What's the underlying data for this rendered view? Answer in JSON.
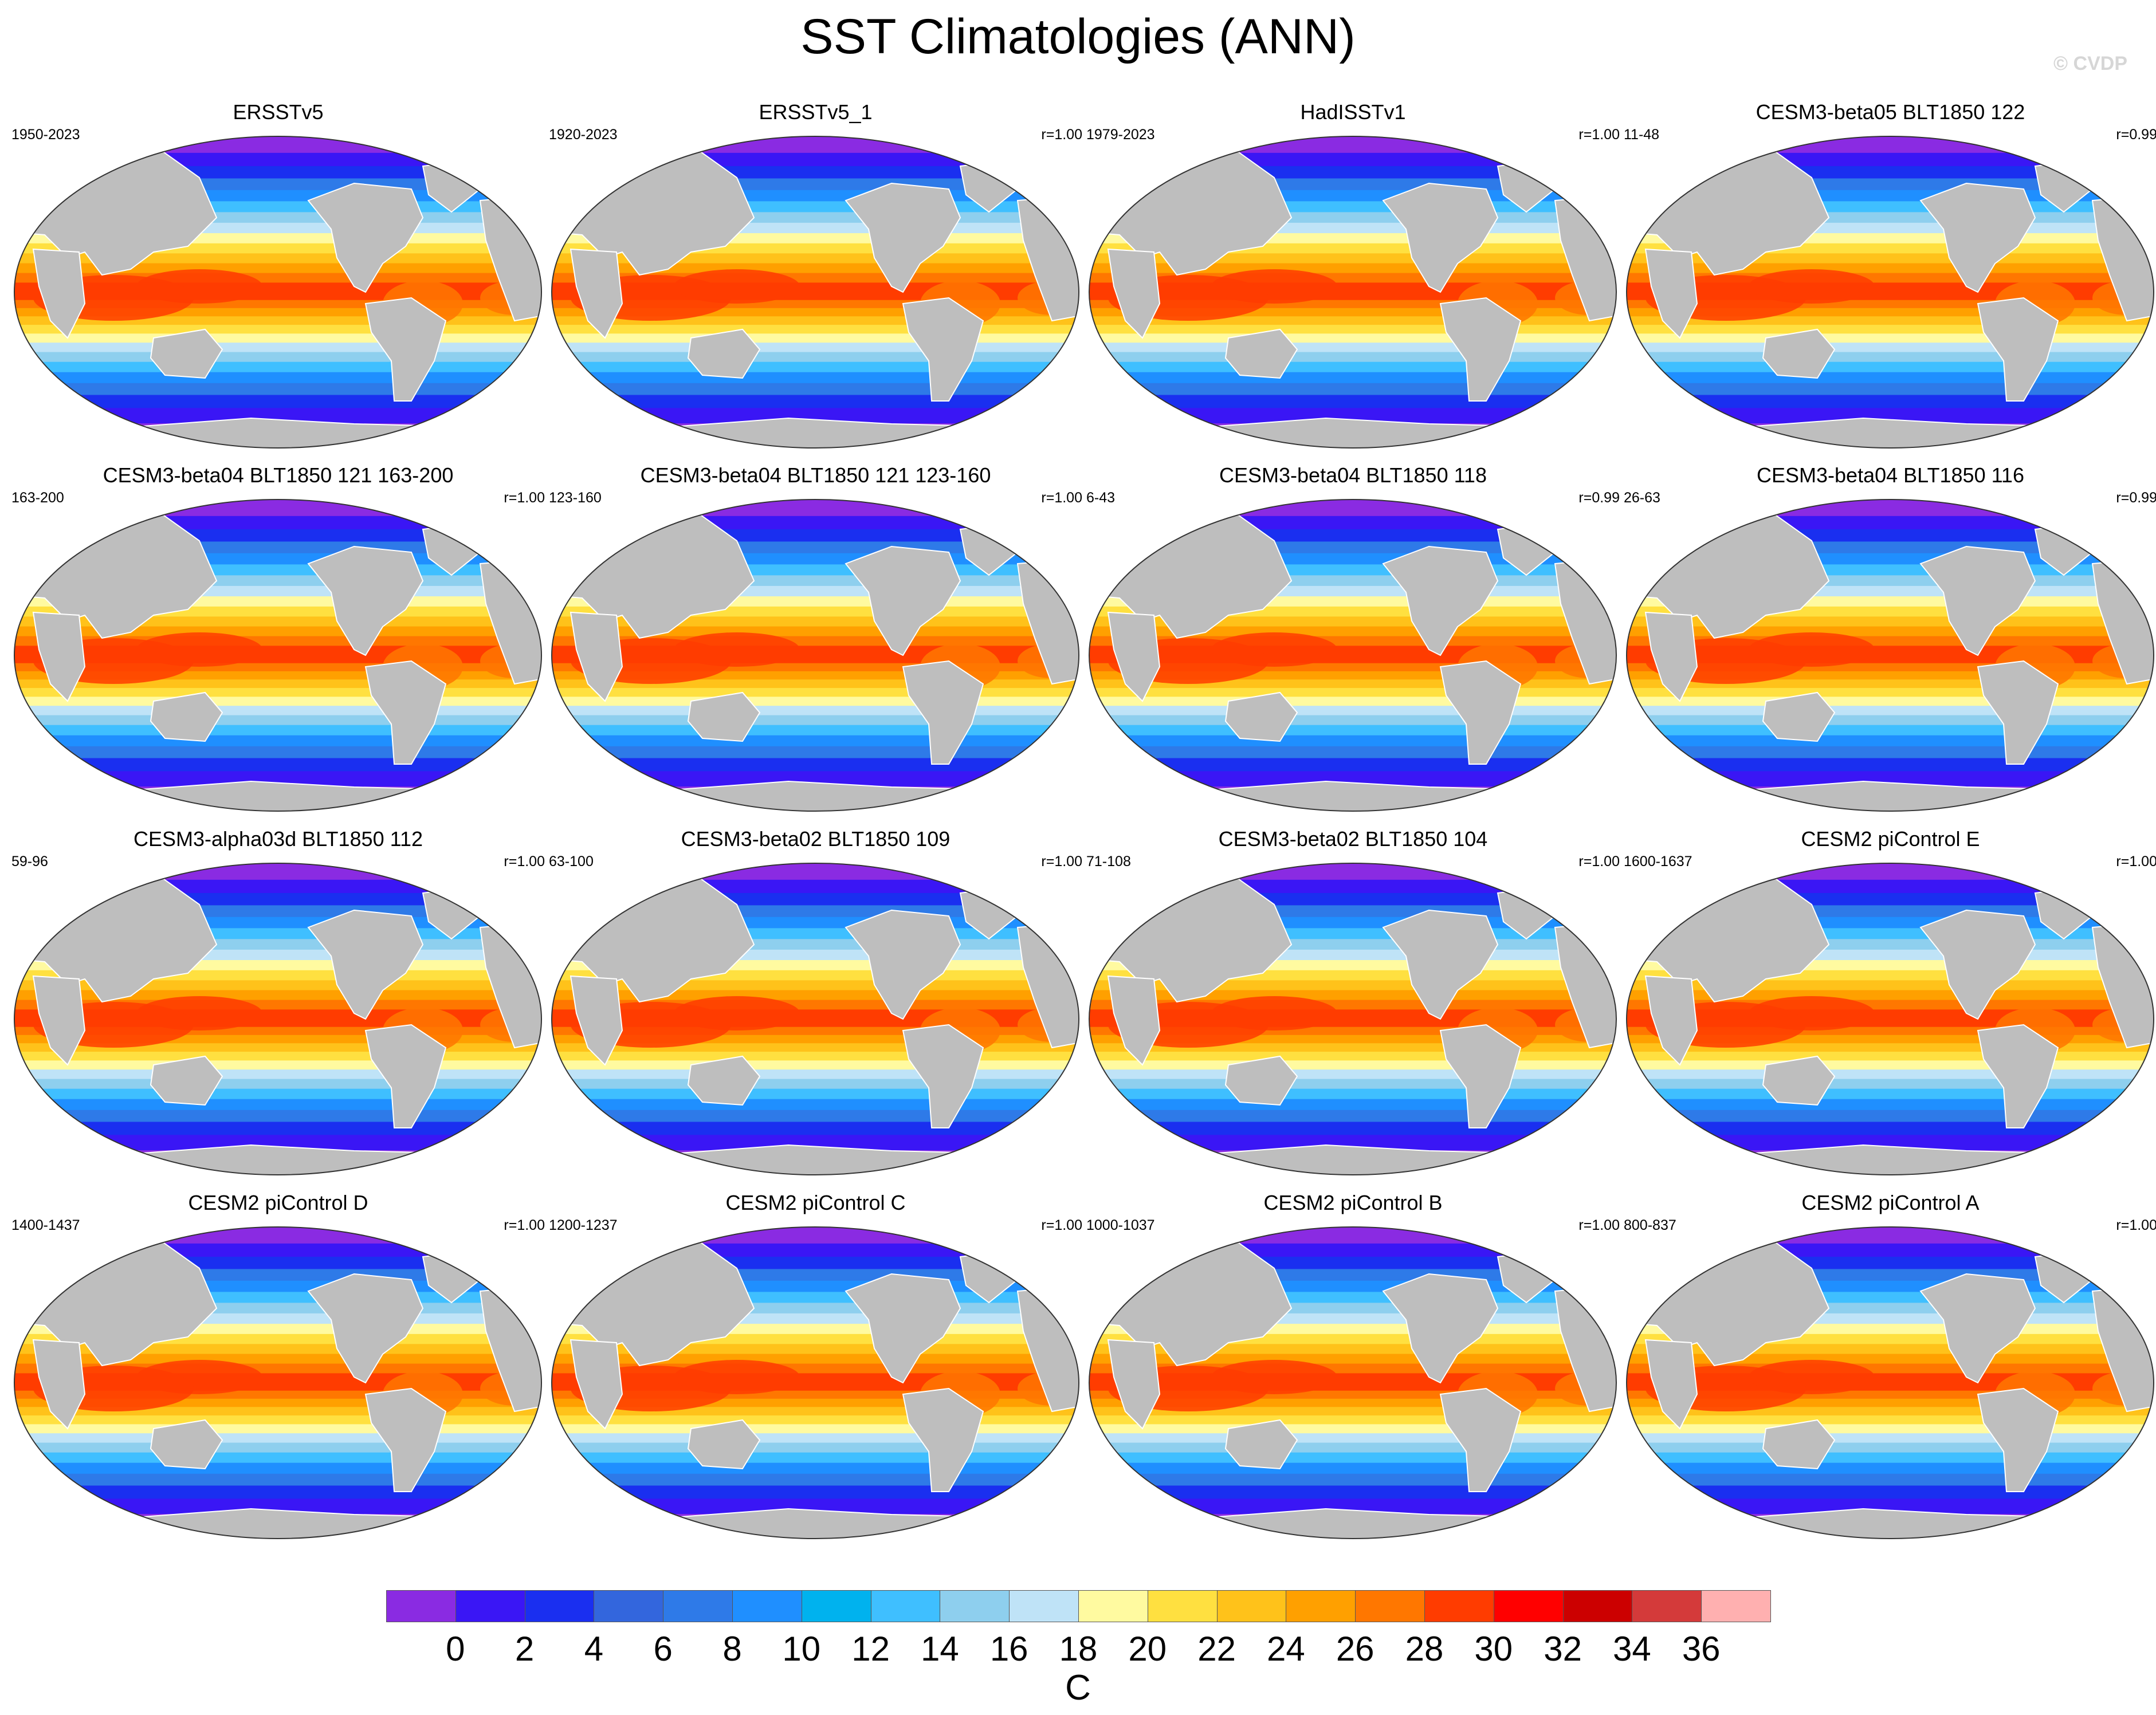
{
  "title": "SST Climatologies (ANN)",
  "watermark": "© CVDP",
  "panels": [
    {
      "title": "ERSSTv5",
      "years": "1950-2023",
      "r": ""
    },
    {
      "title": "ERSSTv5_1",
      "years": "1920-2023",
      "r": "r=1.00"
    },
    {
      "title": "HadISSTv1",
      "years": "1979-2023",
      "r": "r=1.00"
    },
    {
      "title": "CESM3-beta05 BLT1850 122",
      "years": "11-48",
      "r": "r=0.99"
    },
    {
      "title": "CESM3-beta04 BLT1850 121 163-200",
      "years": "163-200",
      "r": "r=1.00"
    },
    {
      "title": "CESM3-beta04 BLT1850 121 123-160",
      "years": "123-160",
      "r": "r=1.00"
    },
    {
      "title": "CESM3-beta04 BLT1850 118",
      "years": "6-43",
      "r": "r=0.99"
    },
    {
      "title": "CESM3-beta04 BLT1850 116",
      "years": "26-63",
      "r": "r=0.99"
    },
    {
      "title": "CESM3-alpha03d BLT1850 112",
      "years": "59-96",
      "r": "r=1.00"
    },
    {
      "title": "CESM3-beta02 BLT1850 109",
      "years": "63-100",
      "r": "r=1.00"
    },
    {
      "title": "CESM3-beta02 BLT1850 104",
      "years": "71-108",
      "r": "r=1.00"
    },
    {
      "title": "CESM2 piControl E",
      "years": "1600-1637",
      "r": "r=1.00"
    },
    {
      "title": "CESM2 piControl D",
      "years": "1400-1437",
      "r": "r=1.00"
    },
    {
      "title": "CESM2 piControl C",
      "years": "1200-1237",
      "r": "r=1.00"
    },
    {
      "title": "CESM2 piControl B",
      "years": "1000-1037",
      "r": "r=1.00"
    },
    {
      "title": "CESM2 piControl A",
      "years": "800-837",
      "r": "r=1.00"
    }
  ],
  "colorbar": {
    "unit": "C",
    "colors": [
      "#8a2be2",
      "#3a16f5",
      "#1a2ff0",
      "#3366dd",
      "#2e7ae8",
      "#1f8fff",
      "#00b2ee",
      "#3fbfff",
      "#8ecfee",
      "#bfe3f7",
      "#fffaa0",
      "#ffe040",
      "#ffc21a",
      "#ffa000",
      "#ff7700",
      "#ff3c00",
      "#ff0000",
      "#cc0000",
      "#d43a3a",
      "#ffb0b0"
    ],
    "ticks": [
      "0",
      "2",
      "4",
      "6",
      "8",
      "10",
      "12",
      "14",
      "16",
      "18",
      "20",
      "22",
      "24",
      "26",
      "28",
      "30",
      "32",
      "34",
      "36"
    ]
  },
  "map_colors": {
    "land": "#bebebe",
    "polar": "#8a2be2",
    "ocean_bands": [
      "#8a2be2",
      "#3a16f5",
      "#1a2ff0",
      "#2e7ae8",
      "#1f8fff",
      "#3fbfff",
      "#8ecfee",
      "#bfe3f7",
      "#fffaa0",
      "#ffe040",
      "#ffc21a",
      "#ffa000",
      "#ff7700",
      "#ff3c00"
    ]
  }
}
